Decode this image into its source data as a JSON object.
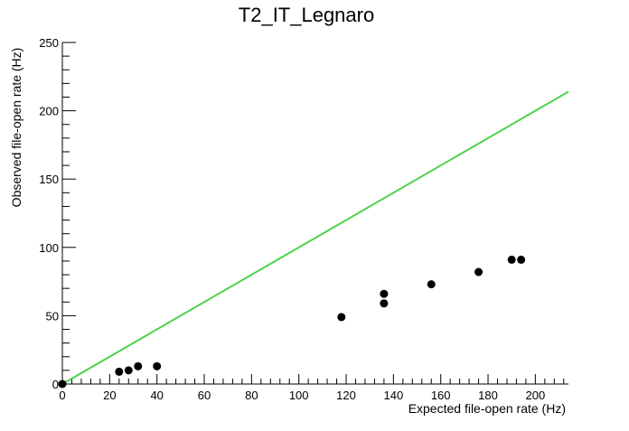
{
  "chart_data": {
    "type": "scatter",
    "title": "T2_IT_Legnaro",
    "xlabel": "Expected file-open rate (Hz)",
    "ylabel": "Observed file-open rate (Hz)",
    "xlim": [
      0,
      214
    ],
    "ylim": [
      0,
      250
    ],
    "x_ticks": [
      0,
      20,
      40,
      60,
      80,
      100,
      120,
      140,
      160,
      180,
      200
    ],
    "y_ticks": [
      0,
      50,
      100,
      150,
      200,
      250
    ],
    "grid": false,
    "points": [
      {
        "x": 0,
        "y": 0
      },
      {
        "x": 24,
        "y": 9
      },
      {
        "x": 28,
        "y": 10
      },
      {
        "x": 32,
        "y": 13
      },
      {
        "x": 40,
        "y": 13
      },
      {
        "x": 118,
        "y": 49
      },
      {
        "x": 136,
        "y": 59
      },
      {
        "x": 136,
        "y": 66
      },
      {
        "x": 156,
        "y": 73
      },
      {
        "x": 176,
        "y": 82
      },
      {
        "x": 190,
        "y": 91
      },
      {
        "x": 194,
        "y": 91
      }
    ],
    "reference_line": {
      "x": [
        0,
        214
      ],
      "y": [
        0,
        214
      ],
      "color": "#4cd24c"
    },
    "marker_color": "#000000"
  }
}
